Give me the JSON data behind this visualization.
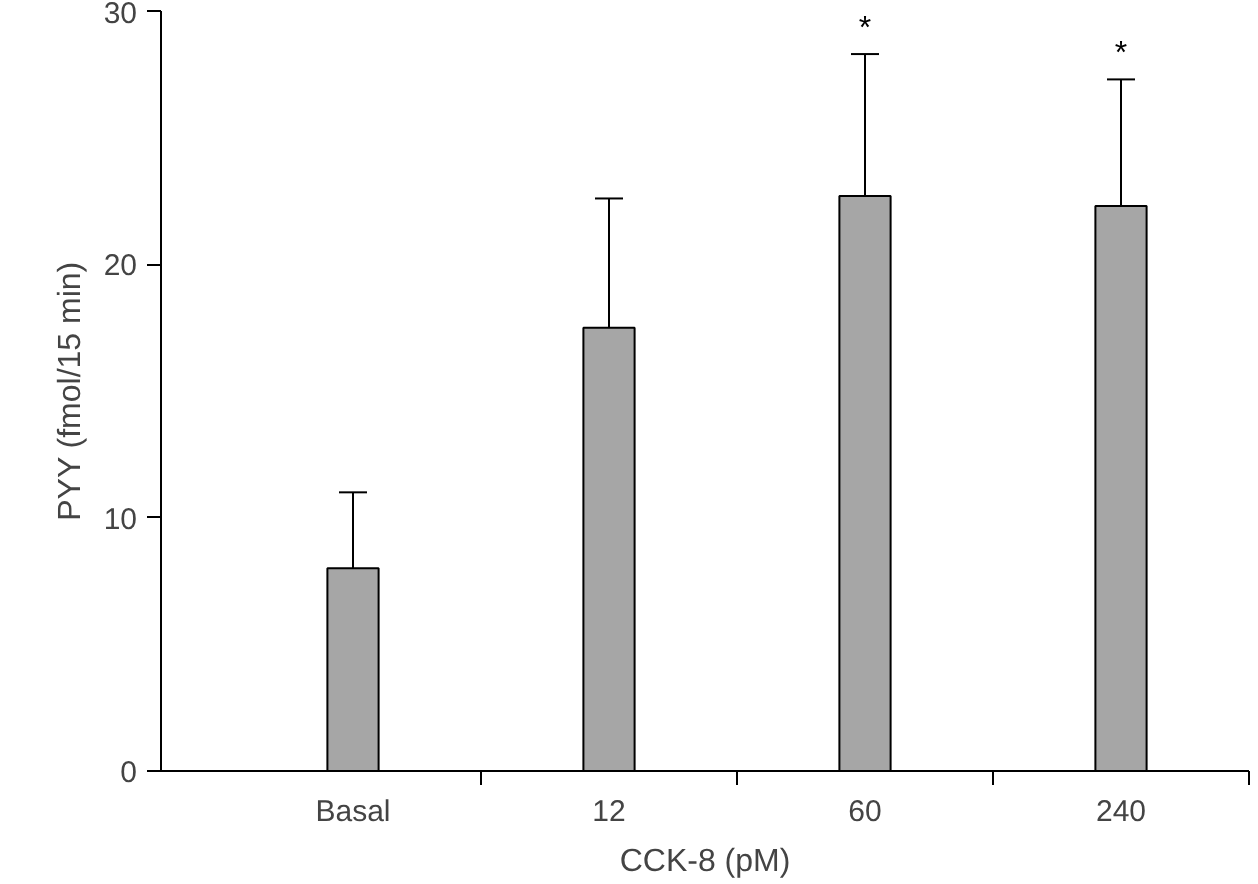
{
  "chart_data": {
    "type": "bar",
    "xlabel": "CCK-8 (pM)",
    "ylabel": "PYY (fmol/15 min)",
    "categories": [
      "Basal",
      "12",
      "60",
      "240"
    ],
    "values": [
      8.0,
      17.5,
      22.7,
      22.3
    ],
    "errors": [
      [
        8.0,
        11.0
      ],
      [
        17.5,
        22.6
      ],
      [
        22.7,
        28.3
      ],
      [
        22.3,
        27.3
      ]
    ],
    "color": "#a6a6a6",
    "ylim": [
      0,
      30
    ],
    "yticks": [
      0,
      10,
      20,
      30
    ],
    "grid": false,
    "annotations": [
      "*",
      "*"
    ]
  }
}
